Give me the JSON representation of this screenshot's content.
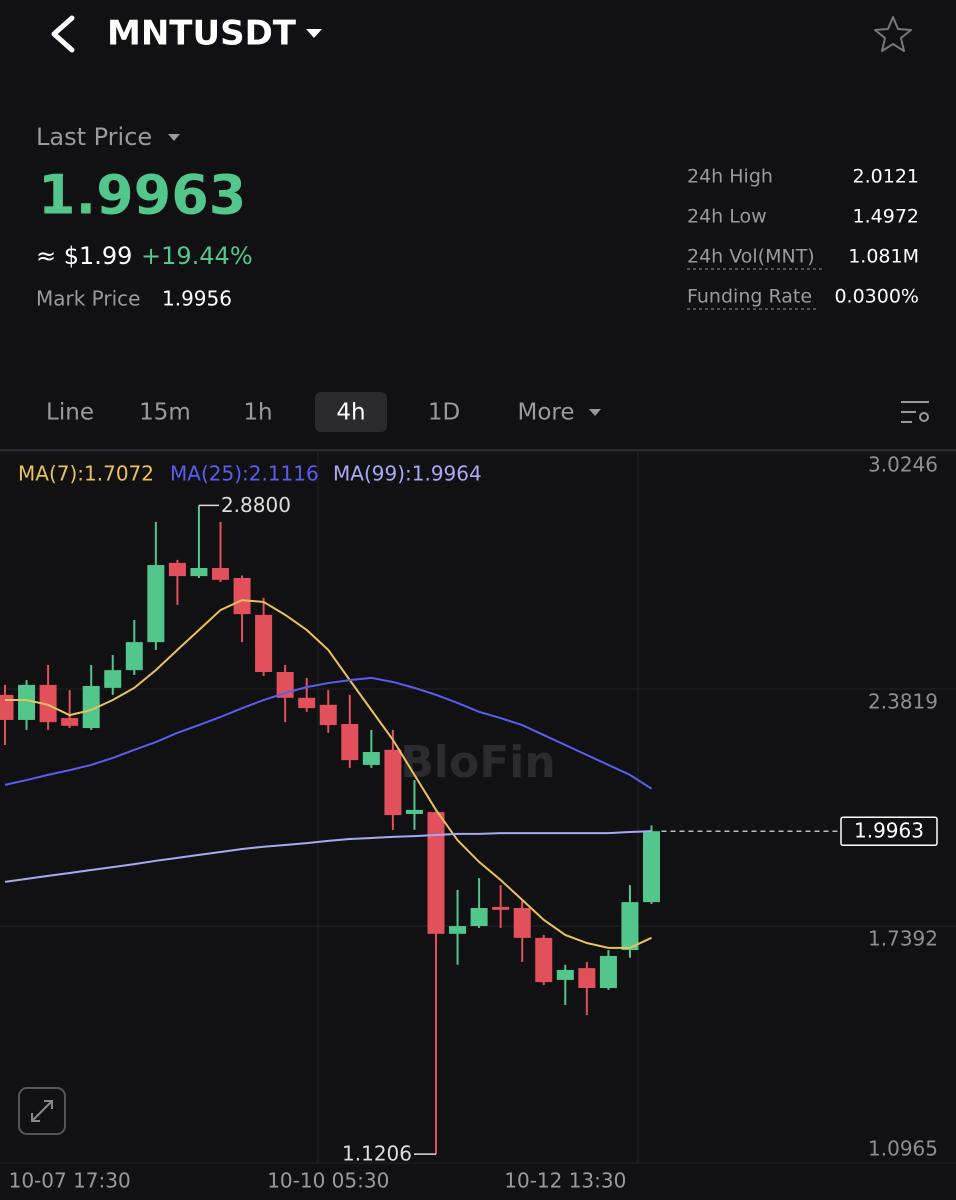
{
  "header": {
    "symbol": "MNTUSDT"
  },
  "price": {
    "label": "Last Price",
    "last": "1.9963",
    "approx": "≈ $1.99",
    "change": "+19.44%",
    "mark_label": "Mark Price",
    "mark": "1.9956"
  },
  "stats": [
    {
      "label": "24h High",
      "value": "2.0121"
    },
    {
      "label": "24h Low",
      "value": "1.4972"
    },
    {
      "label": "24h Vol(MNT)",
      "value": "1.081M"
    },
    {
      "label": "Funding Rate",
      "value": "0.0300%"
    }
  ],
  "tabs": [
    "Line",
    "15m",
    "1h",
    "4h",
    "1D",
    "More"
  ],
  "active_tab": 3,
  "chart_data": {
    "type": "candlestick",
    "categories": [
      null,
      null,
      null,
      "10-07 17:30",
      null,
      null,
      null,
      null,
      null,
      null,
      null,
      null,
      null,
      null,
      null,
      "10-10 05:30",
      null,
      null,
      null,
      null,
      null,
      null,
      null,
      null,
      null,
      null,
      "10-12 13:30",
      null,
      null,
      null,
      null
    ],
    "open": [
      2.366,
      2.298,
      2.393,
      2.303,
      2.276,
      2.385,
      2.433,
      2.509,
      2.724,
      2.688,
      2.71,
      2.683,
      2.583,
      2.428,
      2.358,
      2.339,
      2.287,
      2.176,
      2.217,
      2.043,
      2.048,
      1.718,
      1.739,
      1.791,
      1.788,
      1.707,
      1.593,
      1.625,
      1.571,
      1.674,
      1.804
    ],
    "high": [
      2.393,
      2.406,
      2.447,
      2.379,
      2.447,
      2.474,
      2.569,
      2.835,
      2.732,
      2.88,
      2.835,
      2.69,
      2.629,
      2.447,
      2.412,
      2.379,
      2.366,
      2.271,
      2.271,
      2.135,
      2.05,
      1.837,
      1.869,
      1.85,
      1.81,
      1.715,
      1.634,
      1.642,
      1.674,
      1.85,
      2.012
    ],
    "low": [
      2.23,
      2.271,
      2.271,
      2.276,
      2.271,
      2.366,
      2.42,
      2.488,
      2.61,
      2.683,
      2.672,
      2.509,
      2.417,
      2.292,
      2.32,
      2.263,
      2.168,
      2.168,
      2.0,
      2.0,
      1.1206,
      1.634,
      1.734,
      1.734,
      1.642,
      1.579,
      1.525,
      1.498,
      1.566,
      1.653,
      1.799
    ],
    "close": [
      2.298,
      2.393,
      2.292,
      2.282,
      2.39,
      2.433,
      2.509,
      2.718,
      2.688,
      2.71,
      2.678,
      2.585,
      2.428,
      2.358,
      2.33,
      2.284,
      2.189,
      2.211,
      2.04,
      2.054,
      1.718,
      1.739,
      1.788,
      1.783,
      1.707,
      1.587,
      1.62,
      1.571,
      1.658,
      1.804,
      1.9963
    ],
    "up_color": "#53c68c",
    "down_color": "#e2505c",
    "series": [
      {
        "name": "MA(7):1.7072",
        "color": "#e9c25c",
        "values": [
          2.352,
          2.352,
          2.339,
          2.311,
          2.325,
          2.352,
          2.385,
          2.433,
          2.488,
          2.542,
          2.596,
          2.623,
          2.618,
          2.583,
          2.542,
          2.488,
          2.406,
          2.325,
          2.244,
          2.149,
          2.054,
          1.972,
          1.913,
          1.864,
          1.81,
          1.756,
          1.715,
          1.693,
          1.68,
          1.68,
          1.7072
        ]
      },
      {
        "name": "MA(25):2.1116",
        "color": "#5a5ef0",
        "values": [
          2.122,
          2.135,
          2.149,
          2.162,
          2.176,
          2.195,
          2.217,
          2.238,
          2.263,
          2.284,
          2.306,
          2.33,
          2.352,
          2.371,
          2.387,
          2.398,
          2.406,
          2.412,
          2.401,
          2.385,
          2.366,
          2.344,
          2.32,
          2.303,
          2.284,
          2.257,
          2.23,
          2.203,
          2.176,
          2.149,
          2.1116
        ]
      },
      {
        "name": "MA(99):1.9964",
        "color": "#a9a9f2",
        "values": [
          1.859,
          1.867,
          1.875,
          1.883,
          1.891,
          1.899,
          1.907,
          1.916,
          1.924,
          1.932,
          1.94,
          1.948,
          1.954,
          1.959,
          1.964,
          1.97,
          1.975,
          1.978,
          1.981,
          1.983,
          1.986,
          1.989,
          1.989,
          1.991,
          1.991,
          1.991,
          1.991,
          1.991,
          1.991,
          1.994,
          1.9964
        ]
      }
    ],
    "ylim": [
      1.0965,
      3.0246
    ],
    "yticks": [
      1.0965,
      1.7392,
      2.3819,
      3.0246
    ],
    "grid": true,
    "last_price": 1.9963,
    "max_label": {
      "value": 2.88,
      "label": "2.8800"
    },
    "min_label": 1.1206,
    "watermark": "BloFin"
  }
}
